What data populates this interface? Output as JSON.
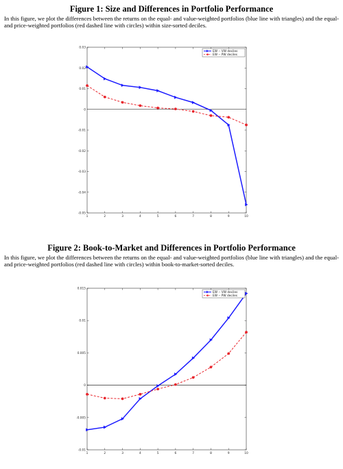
{
  "figures": [
    {
      "title": "Figure 1: Size and Differences in Portfolio Performance",
      "caption": "In this figure, we plot the differences between the returns on the equal- and value-weighted portfolios (blue line with triangles) and the equal- and price-weighted portfolios (red dashed line with circles) within size-sorted deciles."
    },
    {
      "title": "Figure 2: Book-to-Market and Differences in Portfolio Performance",
      "caption": "In this figure, we plot the differences between the returns on the equal- and value-weighted portfolios (blue line with triangles) and the equal- and price-weighted portfolios (red dashed line with circles) within book-to-market-sorted deciles."
    }
  ],
  "chart_data": [
    {
      "type": "line",
      "x": [
        1,
        2,
        3,
        4,
        5,
        6,
        7,
        8,
        9,
        10
      ],
      "xlim": [
        1,
        10
      ],
      "ylim": [
        -0.05,
        0.03
      ],
      "yticks": [
        -0.05,
        -0.04,
        -0.03,
        -0.02,
        -0.01,
        0,
        0.01,
        0.02,
        0.03
      ],
      "ytick_labels": [
        "-0.05",
        "-0.04",
        "-0.03",
        "-0.02",
        "-0.01",
        "0",
        "0.01",
        "0.02",
        "0.03"
      ],
      "xtick_labels": [
        "1",
        "2",
        "3",
        "4",
        "5",
        "6",
        "7",
        "8",
        "9",
        "10"
      ],
      "zero_line": true,
      "legend_position": "top-right",
      "series": [
        {
          "name": "EW -- VW deciles",
          "color": "#1a1aff",
          "style": "solid",
          "marker": "triangle",
          "values": [
            0.0205,
            0.0148,
            0.0116,
            0.0106,
            0.009,
            0.0058,
            0.0033,
            -0.0005,
            -0.0075,
            -0.046
          ]
        },
        {
          "name": "EW -- PW deciles",
          "color": "#e8242b",
          "style": "dashed",
          "marker": "circle",
          "values": [
            0.0115,
            0.006,
            0.0034,
            0.0018,
            0.0007,
            0.0002,
            -0.001,
            -0.003,
            -0.0038,
            -0.0075
          ]
        }
      ]
    },
    {
      "type": "line",
      "x": [
        1,
        2,
        3,
        4,
        5,
        6,
        7,
        8,
        9,
        10
      ],
      "xlim": [
        1,
        10
      ],
      "ylim": [
        -0.01,
        0.015
      ],
      "yticks": [
        -0.01,
        -0.005,
        0,
        0.005,
        0.01,
        0.015
      ],
      "ytick_labels": [
        "-0.01",
        "-0.005",
        "0",
        "0.005",
        "0.01",
        "0.015"
      ],
      "xtick_labels": [
        "1",
        "2",
        "3",
        "4",
        "5",
        "6",
        "7",
        "8",
        "9",
        "10"
      ],
      "zero_line": true,
      "legend_position": "top-right",
      "series": [
        {
          "name": "EW -- VW deciles",
          "color": "#1a1aff",
          "style": "solid",
          "marker": "triangle",
          "values": [
            -0.0069,
            -0.0065,
            -0.0052,
            -0.0021,
            -0.0001,
            0.0017,
            0.0042,
            0.007,
            0.0104,
            0.0142
          ]
        },
        {
          "name": "EW -- PW deciles",
          "color": "#e8242b",
          "style": "dashed",
          "marker": "circle",
          "values": [
            -0.0014,
            -0.002,
            -0.0021,
            -0.0014,
            -0.0006,
            0.0001,
            0.0012,
            0.0028,
            0.0049,
            0.0082
          ]
        }
      ]
    }
  ]
}
